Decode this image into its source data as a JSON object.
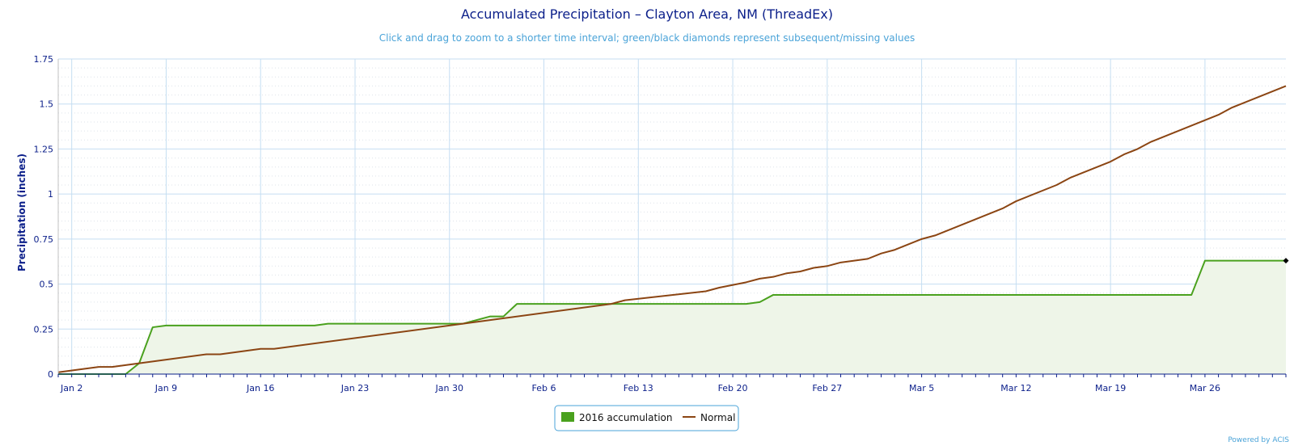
{
  "chart_data": {
    "type": "area",
    "title": "Accumulated Precipitation – Clayton Area, NM (ThreadEx)",
    "subtitle": "Click and drag to zoom to a shorter time interval; green/black diamonds represent subsequent/missing values",
    "xlabel": "",
    "ylabel": "Precipitation (inches)",
    "xlim": [
      "2016-01-01",
      "2016-04-01"
    ],
    "ylim": [
      0,
      1.75
    ],
    "y_ticks": [
      0,
      0.25,
      0.5,
      0.75,
      1,
      1.25,
      1.5,
      1.75
    ],
    "y_tick_labels": [
      "0",
      "0.25",
      "0.5",
      "0.75",
      "1",
      "1.25",
      "1.5",
      "1.75"
    ],
    "x_ticks": [
      "2016-01-02",
      "2016-01-09",
      "2016-01-16",
      "2016-01-23",
      "2016-01-30",
      "2016-02-06",
      "2016-02-13",
      "2016-02-20",
      "2016-02-27",
      "2016-03-05",
      "2016-03-12",
      "2016-03-19",
      "2016-03-26"
    ],
    "x_tick_labels": [
      "Jan 2",
      "Jan 9",
      "Jan 16",
      "Jan 23",
      "Jan 30",
      "Feb 6",
      "Feb 13",
      "Feb 20",
      "Feb 27",
      "Mar 5",
      "Mar 12",
      "Mar 19",
      "Mar 26"
    ],
    "grid": true,
    "legend_position": "bottom-center",
    "series": [
      {
        "name": "2016 accumulation",
        "color": "#4aa11e",
        "fill": "#eef5e8",
        "style": "area",
        "points": [
          [
            "2016-01-01",
            0
          ],
          [
            "2016-01-06",
            0
          ],
          [
            "2016-01-07",
            0.06
          ],
          [
            "2016-01-08",
            0.26
          ],
          [
            "2016-01-09",
            0.27
          ],
          [
            "2016-01-20",
            0.27
          ],
          [
            "2016-01-21",
            0.28
          ],
          [
            "2016-01-31",
            0.28
          ],
          [
            "2016-02-02",
            0.32
          ],
          [
            "2016-02-03",
            0.32
          ],
          [
            "2016-02-04",
            0.39
          ],
          [
            "2016-02-21",
            0.39
          ],
          [
            "2016-02-22",
            0.4
          ],
          [
            "2016-02-23",
            0.44
          ],
          [
            "2016-03-25",
            0.44
          ],
          [
            "2016-03-26",
            0.63
          ],
          [
            "2016-04-01",
            0.63
          ]
        ]
      },
      {
        "name": "Normal",
        "color": "#8b4513",
        "style": "line",
        "points": [
          [
            "2016-01-01",
            0.01
          ],
          [
            "2016-01-04",
            0.04
          ],
          [
            "2016-01-05",
            0.04
          ],
          [
            "2016-01-07",
            0.06
          ],
          [
            "2016-01-12",
            0.11
          ],
          [
            "2016-01-13",
            0.11
          ],
          [
            "2016-01-16",
            0.14
          ],
          [
            "2016-01-17",
            0.14
          ],
          [
            "2016-01-31",
            0.28
          ],
          [
            "2016-02-11",
            0.39
          ],
          [
            "2016-02-12",
            0.41
          ],
          [
            "2016-02-18",
            0.46
          ],
          [
            "2016-02-19",
            0.48
          ],
          [
            "2016-02-21",
            0.51
          ],
          [
            "2016-02-22",
            0.53
          ],
          [
            "2016-02-23",
            0.54
          ],
          [
            "2016-02-24",
            0.56
          ],
          [
            "2016-02-25",
            0.57
          ],
          [
            "2016-02-26",
            0.59
          ],
          [
            "2016-02-27",
            0.6
          ],
          [
            "2016-02-28",
            0.62
          ],
          [
            "2016-03-01",
            0.64
          ],
          [
            "2016-03-02",
            0.67
          ],
          [
            "2016-03-03",
            0.69
          ],
          [
            "2016-03-05",
            0.75
          ],
          [
            "2016-03-06",
            0.77
          ],
          [
            "2016-03-11",
            0.92
          ],
          [
            "2016-03-12",
            0.96
          ],
          [
            "2016-03-15",
            1.05
          ],
          [
            "2016-03-16",
            1.09
          ],
          [
            "2016-03-19",
            1.18
          ],
          [
            "2016-03-20",
            1.22
          ],
          [
            "2016-03-21",
            1.25
          ],
          [
            "2016-03-22",
            1.29
          ],
          [
            "2016-03-27",
            1.44
          ],
          [
            "2016-03-28",
            1.48
          ],
          [
            "2016-04-01",
            1.6
          ]
        ]
      }
    ],
    "markers": [
      {
        "kind": "diamond",
        "color": "#000000",
        "x": "2016-04-01",
        "y": 0.63
      }
    ]
  },
  "legend": {
    "items": [
      {
        "label": "2016 accumulation",
        "color": "#4aa11e",
        "symbol": "box"
      },
      {
        "label": "Normal",
        "color": "#8b4513",
        "symbol": "line"
      }
    ]
  },
  "credit": "Powered by ACIS",
  "colors": {
    "title": "#0b1f8a",
    "subtitle": "#4aa3d8",
    "grid_major": "#c5def2",
    "grid_minor": "#dde3ea",
    "legend_border": "#4aa3d8"
  }
}
